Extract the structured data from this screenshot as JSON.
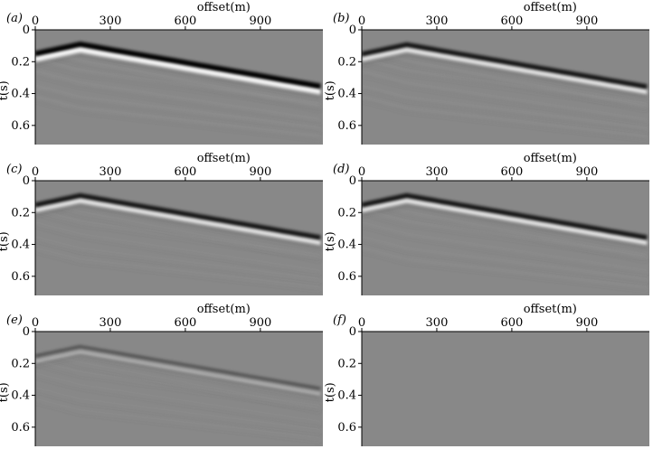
{
  "figure": {
    "x_axis_label": "offset(m)",
    "y_axis_label": "t(s)",
    "x_ticks": [
      0,
      300,
      600,
      900
    ],
    "y_ticks": [
      0,
      0.2,
      0.4,
      0.6
    ],
    "x_range": [
      0,
      1150
    ],
    "y_range": [
      0,
      0.72
    ],
    "background_gray": "#888888",
    "panels": [
      {
        "label": "(a)",
        "strength": 1.0,
        "direct_weight": 1.0,
        "noise": 0.35,
        "reflections": 1.0
      },
      {
        "label": "(b)",
        "strength": 0.85,
        "direct_weight": 0.75,
        "noise": 0.25,
        "reflections": 0.8
      },
      {
        "label": "(c)",
        "strength": 0.85,
        "direct_weight": 0.75,
        "noise": 0.15,
        "reflections": 0.6
      },
      {
        "label": "(d)",
        "strength": 0.85,
        "direct_weight": 0.75,
        "noise": 0.2,
        "reflections": 0.7
      },
      {
        "label": "(e)",
        "strength": 0.45,
        "direct_weight": 0.35,
        "noise": 0.25,
        "reflections": 0.55
      },
      {
        "label": "(f)",
        "strength": 0.0,
        "direct_weight": 0.0,
        "noise": 0.0,
        "reflections": 0.0
      }
    ]
  }
}
